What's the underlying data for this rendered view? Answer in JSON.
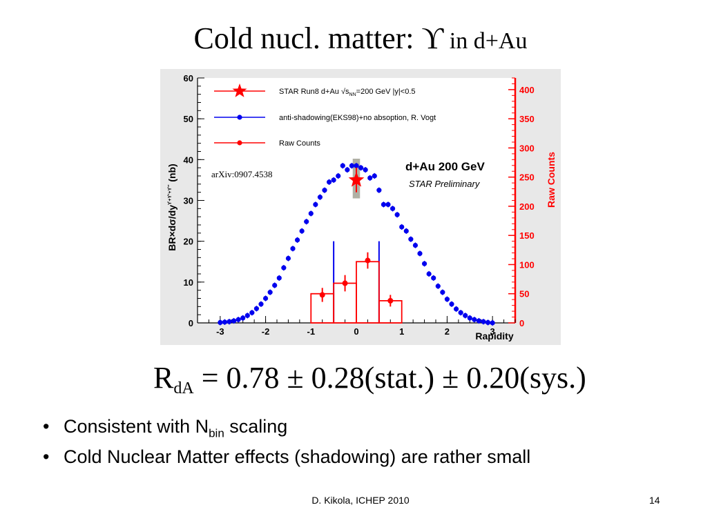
{
  "slide": {
    "title_main": "Cold nucl. matter: ",
    "title_symbol": "ϒ",
    "title_sub": " in d+Au",
    "formula": {
      "lhs": "R",
      "lhs_sub": "dA",
      "rhs": " = 0.78 ± 0.28(stat.)  ± 0.20(sys.)"
    },
    "bullets": [
      {
        "text": "Consistent with N",
        "sub": "bin",
        "tail": " scaling"
      },
      {
        "text": "Cold Nuclear Matter effects (shadowing) are rather small"
      }
    ],
    "footer": "D. Kikola, ICHEP 2010",
    "page_number": "14"
  },
  "chart_data": {
    "type": "scatter",
    "xlabel": "Rapidity",
    "ylabel": "BR×dσ/dy",
    "ylabel_sup": "ϒ+ϒ′+ϒ″",
    "ylabel_unit": "(nb)",
    "y2label": "Raw Counts",
    "xlim": [
      -3.5,
      3.5
    ],
    "ylim": [
      0,
      60
    ],
    "y2lim": [
      0,
      420
    ],
    "xticks": [
      -3,
      -2,
      -1,
      0,
      1,
      2,
      3
    ],
    "yticks": [
      0,
      10,
      20,
      30,
      40,
      50,
      60
    ],
    "y2ticks": [
      0,
      50,
      100,
      150,
      200,
      250,
      300,
      350,
      400
    ],
    "colors": {
      "star": "#ff0000",
      "vogt": "#0000ee",
      "raw": "#ff0000",
      "y2axis": "#ff0000",
      "band": "#b0b0a4"
    },
    "annotations": {
      "arxiv": "arXiv:0907.4538",
      "system": "d+Au 200 GeV",
      "preliminary": "STAR Preliminary"
    },
    "legend": [
      {
        "label": "STAR Run8 d+Au √s",
        "sub": "NN",
        "tail": "=200 GeV  |y|<0.5",
        "marker": "star"
      },
      {
        "label": "anti-shadowing(EKS98)+no absoption, R. Vogt",
        "marker": "circle-blue"
      },
      {
        "label": "Raw Counts",
        "marker": "circle-red"
      }
    ],
    "series": [
      {
        "name": "STAR Run8 d+Au √sNN=200 GeV  |y|<0.5",
        "points": [
          {
            "x": 0.0,
            "y": 35.0,
            "err": 3.0
          }
        ],
        "band": {
          "x": [
            -0.08,
            0.08
          ],
          "y": [
            30.5,
            40.5
          ]
        }
      },
      {
        "name": "anti-shadowing(EKS98)+no absoption, R. Vogt",
        "x": [
          -3.0,
          -2.9,
          -2.8,
          -2.7,
          -2.6,
          -2.5,
          -2.4,
          -2.3,
          -2.2,
          -2.1,
          -2.0,
          -1.9,
          -1.8,
          -1.7,
          -1.6,
          -1.5,
          -1.4,
          -1.3,
          -1.2,
          -1.1,
          -1.0,
          -0.9,
          -0.8,
          -0.7,
          -0.6,
          -0.5,
          -0.4,
          -0.3,
          -0.2,
          -0.1,
          0.0,
          0.1,
          0.2,
          0.3,
          0.4,
          0.5,
          0.6,
          0.7,
          0.8,
          0.9,
          1.0,
          1.1,
          1.2,
          1.3,
          1.4,
          1.5,
          1.6,
          1.7,
          1.8,
          1.9,
          2.0,
          2.1,
          2.2,
          2.3,
          2.4,
          2.5,
          2.6,
          2.7,
          2.8,
          2.9,
          3.0
        ],
        "y": [
          0.1,
          0.2,
          0.3,
          0.5,
          0.8,
          1.2,
          1.8,
          2.5,
          3.5,
          4.6,
          6.0,
          7.5,
          9.2,
          11.0,
          13.5,
          15.8,
          18.2,
          20.3,
          22.5,
          24.8,
          26.8,
          29.0,
          30.8,
          32.5,
          34.5,
          35.0,
          36.0,
          38.5,
          37.5,
          38.5,
          38.5,
          38.0,
          37.5,
          35.5,
          36.0,
          32.5,
          29.0,
          29.0,
          28.0,
          26.5,
          23.5,
          22.5,
          20.5,
          19.0,
          17.0,
          14.5,
          12.0,
          11.0,
          9.0,
          7.5,
          5.8,
          4.6,
          3.4,
          2.5,
          1.8,
          1.2,
          0.8,
          0.5,
          0.3,
          0.1,
          0.0
        ],
        "err": 0.7,
        "boundaries": [
          -0.5,
          0.5
        ],
        "boundary_top": 20.0
      },
      {
        "name": "Raw Counts",
        "axis": "y2",
        "bins": [
          {
            "x": [
              -2.0,
              -1.0
            ],
            "y": 0
          },
          {
            "x": [
              -1.0,
              -0.5
            ],
            "y": 50
          },
          {
            "x": [
              -0.5,
              0.0
            ],
            "y": 68
          },
          {
            "x": [
              0.0,
              0.5
            ],
            "y": 105
          },
          {
            "x": [
              0.5,
              1.0
            ],
            "y": 38
          },
          {
            "x": [
              1.0,
              1.5
            ],
            "y": 0
          }
        ],
        "points": [
          {
            "x": -0.75,
            "y": 48,
            "err": 12
          },
          {
            "x": -0.25,
            "y": 68,
            "err": 14
          },
          {
            "x": 0.25,
            "y": 107,
            "err": 14
          },
          {
            "x": 0.75,
            "y": 38,
            "err": 10
          }
        ]
      }
    ]
  }
}
